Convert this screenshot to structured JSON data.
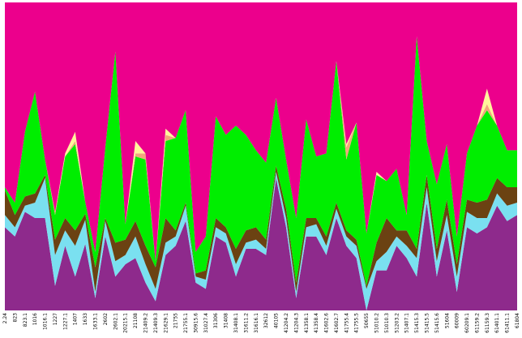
{
  "chart_data": {
    "type": "area",
    "stacked": true,
    "normalized": true,
    "xlabel": "",
    "ylabel": "",
    "grid": false,
    "legend": "none",
    "categories": [
      "2.24",
      "823",
      "823.1",
      "1016",
      "1016.1",
      "1227",
      "1227.1",
      "1407",
      "1633",
      "1633.1",
      "2602",
      "2602.1",
      "20215.1",
      "21108",
      "21409.2",
      "21409.3",
      "21629.1",
      "21755",
      "21755.1",
      "30915.6",
      "31027.4",
      "31306",
      "31408",
      "31408.1",
      "31611.2",
      "31616.1",
      "32612",
      "40105",
      "41204.2",
      "41204.3",
      "41358.1",
      "41358.4",
      "41602.6",
      "41602.7",
      "41755.4",
      "41755.5",
      "50655",
      "51010.2",
      "51010.3",
      "51203.2",
      "51407.1",
      "51415.3",
      "51415.5",
      "51415.6",
      "51604",
      "60009",
      "60209.1",
      "61159.2",
      "61159.3",
      "61401.1",
      "61411.1",
      "61804"
    ],
    "ylim": [
      0,
      1
    ],
    "series": [
      {
        "name": "",
        "color": "#8e2a8c",
        "values": [
          0.27,
          0.24,
          0.32,
          0.3,
          0.3,
          0.08,
          0.21,
          0.11,
          0.22,
          0.04,
          0.24,
          0.11,
          0.15,
          0.17,
          0.09,
          0.03,
          0.18,
          0.21,
          0.29,
          0.09,
          0.07,
          0.24,
          0.22,
          0.11,
          0.2,
          0.2,
          0.18,
          0.43,
          0.27,
          0.04,
          0.24,
          0.24,
          0.18,
          0.3,
          0.21,
          0.17,
          0.0,
          0.13,
          0.13,
          0.21,
          0.17,
          0.11,
          0.35,
          0.11,
          0.26,
          0.06,
          0.27,
          0.25,
          0.27,
          0.34,
          0.29,
          0.31
        ]
      },
      {
        "name": "",
        "color": "#7ae0f0",
        "values": [
          0.04,
          0.03,
          0.02,
          0.05,
          0.13,
          0.1,
          0.05,
          0.1,
          0.08,
          0.02,
          0.05,
          0.05,
          0.03,
          0.07,
          0.06,
          0.04,
          0.04,
          0.03,
          0.05,
          0.02,
          0.03,
          0.03,
          0.03,
          0.04,
          0.02,
          0.03,
          0.02,
          0.02,
          0.03,
          0.02,
          0.03,
          0.04,
          0.03,
          0.03,
          0.03,
          0.04,
          0.07,
          0.03,
          0.06,
          0.03,
          0.04,
          0.06,
          0.05,
          0.05,
          0.05,
          0.05,
          0.05,
          0.05,
          0.03,
          0.04,
          0.05,
          0.04
        ]
      },
      {
        "name": "",
        "color": "#6b4212",
        "values": [
          0.08,
          0.04,
          0.03,
          0.03,
          0.01,
          0.05,
          0.04,
          0.05,
          0.02,
          0.08,
          0.01,
          0.06,
          0.05,
          0.05,
          0.06,
          0.07,
          0.08,
          0.02,
          0.01,
          0.01,
          0.03,
          0.03,
          0.02,
          0.05,
          0.04,
          0.04,
          0.03,
          0.02,
          0.03,
          0.03,
          0.03,
          0.02,
          0.03,
          0.02,
          0.02,
          0.02,
          0.01,
          0.06,
          0.11,
          0.02,
          0.05,
          0.03,
          0.04,
          0.04,
          0.05,
          0.04,
          0.04,
          0.05,
          0.06,
          0.05,
          0.06,
          0.05
        ]
      },
      {
        "name": "",
        "color": "#00ee00",
        "values": [
          0.01,
          0.04,
          0.21,
          0.33,
          0.05,
          0.08,
          0.2,
          0.28,
          0.04,
          0.05,
          0.23,
          0.62,
          0.05,
          0.21,
          0.28,
          0.02,
          0.25,
          0.3,
          0.3,
          0.07,
          0.11,
          0.33,
          0.3,
          0.4,
          0.31,
          0.25,
          0.25,
          0.22,
          0.16,
          0.21,
          0.32,
          0.2,
          0.27,
          0.46,
          0.23,
          0.38,
          0.17,
          0.22,
          0.12,
          0.2,
          0.05,
          0.69,
          0.11,
          0.21,
          0.18,
          0.09,
          0.15,
          0.25,
          0.29,
          0.17,
          0.12,
          0.12
        ]
      },
      {
        "name": "",
        "color": "#f4a57c",
        "values": [
          0.0,
          0.0,
          0.0,
          0.0,
          0.0,
          0.01,
          0.0,
          0.01,
          0.0,
          0.0,
          0.0,
          0.0,
          0.0,
          0.01,
          0.02,
          0.0,
          0.02,
          0.0,
          0.0,
          0.0,
          0.0,
          0.0,
          0.0,
          0.0,
          0.0,
          0.0,
          0.0,
          0.0,
          0.0,
          0.0,
          0.0,
          0.0,
          0.0,
          0.0,
          0.04,
          0.0,
          0.0,
          0.0,
          0.0,
          0.0,
          0.0,
          0.0,
          0.0,
          0.0,
          0.0,
          0.0,
          0.0,
          0.0,
          0.02,
          0.0,
          0.0,
          0.0
        ]
      },
      {
        "name": "",
        "color": "#fff59a",
        "values": [
          0.0,
          0.0,
          0.0,
          0.0,
          0.0,
          0.0,
          0.01,
          0.03,
          0.0,
          0.0,
          0.0,
          0.0,
          0.0,
          0.04,
          0.0,
          0.0,
          0.02,
          0.0,
          0.0,
          0.0,
          0.0,
          0.0,
          0.0,
          0.0,
          0.0,
          0.0,
          0.0,
          0.0,
          0.0,
          0.0,
          0.0,
          0.0,
          0.0,
          0.0,
          0.01,
          0.0,
          0.0,
          0.01,
          0.0,
          0.0,
          0.0,
          0.0,
          0.0,
          0.0,
          0.0,
          0.0,
          0.0,
          0.0,
          0.05,
          0.0,
          0.0,
          0.0
        ]
      },
      {
        "name": "",
        "color": "#ec008c",
        "values": [
          0.6,
          0.65,
          0.42,
          0.29,
          0.51,
          0.68,
          0.49,
          0.42,
          0.66,
          0.81,
          0.47,
          0.16,
          0.72,
          0.45,
          0.49,
          0.84,
          0.41,
          0.44,
          0.35,
          0.81,
          0.76,
          0.37,
          0.43,
          0.4,
          0.43,
          0.48,
          0.52,
          0.31,
          0.51,
          0.7,
          0.38,
          0.5,
          0.49,
          0.19,
          0.46,
          0.39,
          0.75,
          0.55,
          0.58,
          0.54,
          0.69,
          0.11,
          0.45,
          0.59,
          0.46,
          0.76,
          0.49,
          0.4,
          0.28,
          0.4,
          0.48,
          0.48
        ]
      }
    ]
  }
}
